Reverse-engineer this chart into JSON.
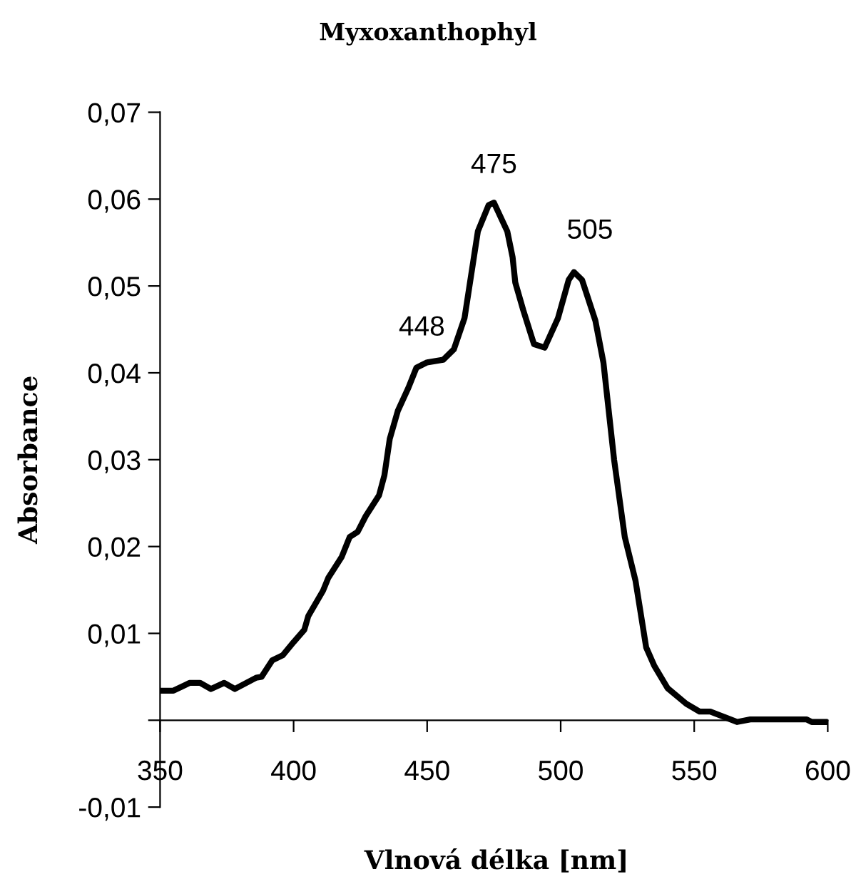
{
  "chart_data": {
    "type": "line",
    "title": "Myxoxanthophyl",
    "xlabel": "Vlnová délka [nm]",
    "ylabel": "Absorbance",
    "xlim": [
      350,
      600
    ],
    "xticks": [
      350,
      400,
      450,
      500,
      550,
      600
    ],
    "ylim": [
      -0.01,
      0.07
    ],
    "yticks": [
      {
        "value": -0.01,
        "label": "-0,01"
      },
      {
        "value": 0,
        "label": null
      },
      {
        "value": 0.01,
        "label": "0,01"
      },
      {
        "value": 0.02,
        "label": "0,02"
      },
      {
        "value": 0.03,
        "label": "0,03"
      },
      {
        "value": 0.04,
        "label": "0,04"
      },
      {
        "value": 0.05,
        "label": "0,05"
      },
      {
        "value": 0.06,
        "label": "0,06"
      },
      {
        "value": 0.07,
        "label": "0,07"
      }
    ],
    "grid": false,
    "marker": "none",
    "line_style": "solid",
    "series": [
      {
        "color": "#000000",
        "x": [
          350,
          355,
          361,
          365,
          369,
          374,
          378,
          386,
          388,
          392,
          396,
          400,
          404,
          405.5,
          411,
          413,
          418,
          421,
          424,
          427,
          432,
          434,
          436,
          439,
          443,
          446,
          450,
          456,
          460,
          464,
          469,
          473,
          475,
          480,
          482,
          483,
          486,
          490,
          494,
          499,
          503,
          505,
          508,
          513,
          516,
          520,
          524,
          528,
          532,
          535,
          540,
          547,
          552,
          556,
          561,
          566,
          571,
          592,
          594,
          600
        ],
        "values": [
          0.0034,
          0.0034,
          0.0043,
          0.0043,
          0.0036,
          0.0043,
          0.0036,
          0.0049,
          0.005,
          0.0069,
          0.0075,
          0.009,
          0.0104,
          0.012,
          0.0149,
          0.0164,
          0.0188,
          0.0211,
          0.0217,
          0.0235,
          0.0259,
          0.0282,
          0.0324,
          0.0356,
          0.0383,
          0.0406,
          0.0412,
          0.0415,
          0.0427,
          0.0463,
          0.0563,
          0.0593,
          0.0596,
          0.0563,
          0.0533,
          0.0504,
          0.0472,
          0.0433,
          0.0429,
          0.0463,
          0.0507,
          0.0516,
          0.0507,
          0.046,
          0.0412,
          0.03,
          0.0211,
          0.0161,
          0.0084,
          0.0063,
          0.0037,
          0.0019,
          0.001,
          0.001,
          0.0004,
          -0.0002,
          0.0001,
          0.0001,
          -0.0002,
          -0.0002
        ]
      }
    ],
    "annotations": [
      {
        "text": "448",
        "x": 448,
        "y": 0.0409
      },
      {
        "text": "475",
        "x": 475,
        "y": 0.0596
      },
      {
        "text": "505",
        "x": 505,
        "y": 0.0516
      }
    ]
  }
}
